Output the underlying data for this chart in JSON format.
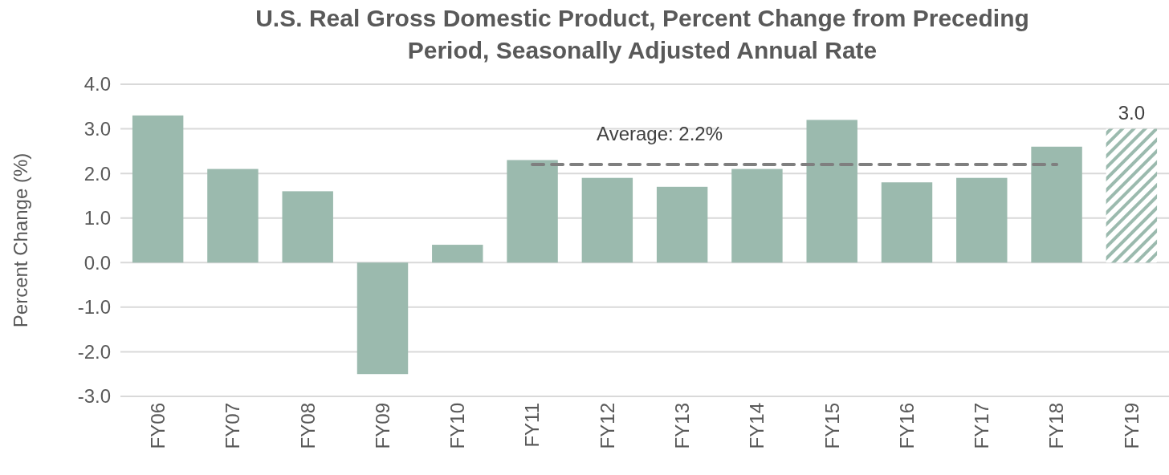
{
  "chart_data": {
    "type": "bar",
    "title": "U.S. Real Gross Domestic Product, Percent Change from Preceding Period, Seasonally Adjusted Annual Rate",
    "ylabel": "Percent Change (%)",
    "categories": [
      "FY06",
      "FY07",
      "FY08",
      "FY09",
      "FY10",
      "FY11",
      "FY12",
      "FY13",
      "FY14",
      "FY15",
      "FY16",
      "FY17",
      "FY18",
      "FY19"
    ],
    "series": [
      {
        "color": "#9bbaae",
        "values": [
          3.3,
          2.1,
          1.6,
          -2.5,
          0.4,
          2.3,
          1.9,
          1.7,
          2.1,
          3.2,
          1.8,
          1.9,
          2.6,
          null
        ]
      },
      {
        "color": "#9bbaae",
        "values": [
          null,
          null,
          null,
          null,
          null,
          null,
          null,
          null,
          null,
          null,
          null,
          null,
          null,
          3.0
        ],
        "value_labels": [
          null,
          null,
          null,
          null,
          null,
          null,
          null,
          null,
          null,
          null,
          null,
          null,
          null,
          "3.0"
        ]
      },
      {
        "type": "line",
        "name": "Average: 2.2%",
        "color": "#7f7f7f",
        "line_style": "dashed",
        "marker": "none",
        "values": [
          null,
          null,
          null,
          null,
          null,
          2.2,
          2.2,
          2.2,
          2.2,
          2.2,
          2.2,
          2.2,
          2.2,
          null
        ]
      }
    ],
    "ylim": [
      -3,
      4
    ],
    "yticks": [
      {
        "value": -3,
        "label": "-3.0"
      },
      {
        "value": -2,
        "label": "-2.0"
      },
      {
        "value": -1,
        "label": "-1.0"
      },
      {
        "value": 0,
        "label": "0.0"
      },
      {
        "value": 1,
        "label": "1.0"
      },
      {
        "value": 2,
        "label": "2.0"
      },
      {
        "value": 3,
        "label": "3.0"
      },
      {
        "value": 4,
        "label": "4.0"
      }
    ],
    "grid": "y"
  }
}
